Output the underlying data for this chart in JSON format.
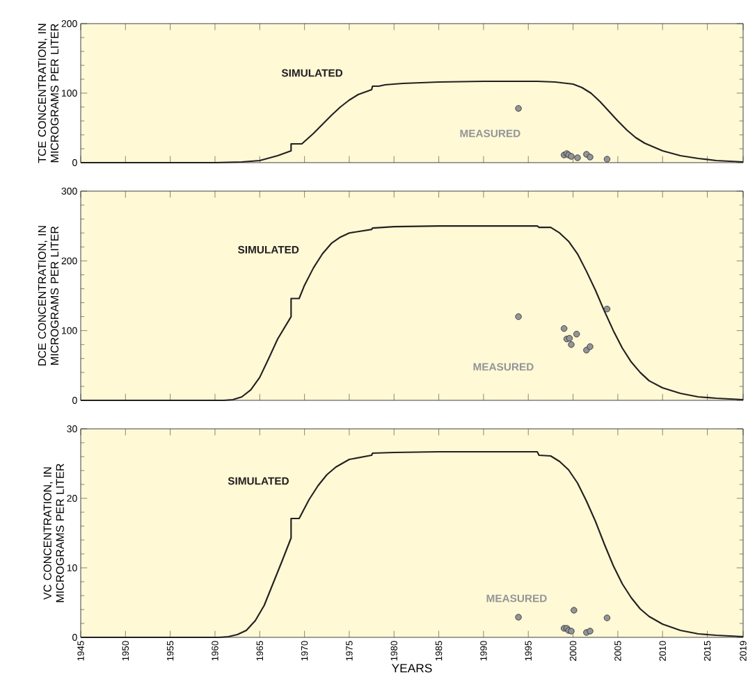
{
  "chart_data": [
    {
      "type": "line",
      "ylabel": "TCE CONCENTRATION, IN MICROGRAMS PER LITER",
      "xlim": [
        1945,
        2019
      ],
      "xticks": [
        1945,
        1950,
        1955,
        1960,
        1965,
        1970,
        1975,
        1980,
        1985,
        1990,
        1995,
        2000,
        2005,
        2010,
        2015,
        2019
      ],
      "ylim": [
        0,
        200
      ],
      "yticks": [
        0,
        100,
        200
      ],
      "tick_labels": "y",
      "series": [
        {
          "name": "SIMULATED",
          "type": "line",
          "color": "#231f20",
          "marker": "none",
          "x": [
            1945,
            1960,
            1963,
            1965,
            1967,
            1968.5,
            1968.5,
            1969.7,
            1971,
            1972,
            1973,
            1974,
            1975,
            1976,
            1977.5,
            1977.6,
            1978.3,
            1979,
            1981,
            1985,
            1990,
            1996,
            1998,
            2000,
            2001,
            2002,
            2003,
            2004,
            2005,
            2006,
            2007,
            2008,
            2010,
            2012,
            2014,
            2016,
            2019
          ],
          "values": [
            0,
            0,
            1,
            3,
            10,
            17,
            27,
            27,
            42,
            55,
            68,
            80,
            90,
            98,
            105,
            110,
            110,
            112,
            114,
            116,
            117,
            117,
            116,
            113,
            108,
            100,
            88,
            74,
            60,
            47,
            36,
            28,
            17,
            10,
            6,
            3,
            1
          ]
        },
        {
          "name": "MEASURED",
          "type": "scatter",
          "color": "#939598",
          "marker": "circle",
          "x": [
            1993.9,
            1999.0,
            1999.3,
            1999.5,
            1999.8,
            2000.5,
            2001.5,
            2001.9,
            2003.8
          ],
          "values": [
            78,
            11,
            13,
            11,
            9,
            7,
            12,
            8,
            5
          ]
        }
      ]
    },
    {
      "type": "line",
      "ylabel": "DCE CONCENTRATION, IN MICROGRAMS PER LITER",
      "xlim": [
        1945,
        2019
      ],
      "xticks": [
        1945,
        1950,
        1955,
        1960,
        1965,
        1970,
        1975,
        1980,
        1985,
        1990,
        1995,
        2000,
        2005,
        2010,
        2015,
        2019
      ],
      "ylim": [
        0,
        300
      ],
      "yticks": [
        0,
        100,
        200,
        300
      ],
      "tick_labels": "y",
      "series": [
        {
          "name": "SIMULATED",
          "type": "line",
          "color": "#231f20",
          "marker": "none",
          "x": [
            1945,
            1961,
            1962,
            1963,
            1964,
            1965,
            1966,
            1967,
            1968.5,
            1968.5,
            1969.4,
            1970,
            1971,
            1972,
            1973,
            1974,
            1975,
            1977.5,
            1977.6,
            1980,
            1985,
            1996,
            1996.2,
            1997.5,
            1998.5,
            1999.5,
            2000.5,
            2001.5,
            2002.5,
            2003.5,
            2004.5,
            2005.5,
            2006.5,
            2007.5,
            2008.5,
            2010,
            2012,
            2014,
            2016,
            2019
          ],
          "values": [
            0,
            0,
            1,
            5,
            15,
            33,
            60,
            88,
            120,
            146,
            146,
            165,
            190,
            210,
            225,
            234,
            240,
            245,
            247,
            249,
            250,
            250,
            248,
            248,
            240,
            228,
            210,
            185,
            158,
            128,
            100,
            75,
            55,
            40,
            28,
            18,
            10,
            5,
            3,
            1
          ]
        },
        {
          "name": "MEASURED",
          "type": "scatter",
          "color": "#939598",
          "marker": "circle",
          "x": [
            1993.9,
            2003.8,
            1999.0,
            1999.3,
            1999.6,
            1999.8,
            2000.4,
            2001.5,
            2001.9
          ],
          "values": [
            120,
            131,
            103,
            88,
            89,
            80,
            95,
            72,
            77
          ]
        }
      ]
    },
    {
      "type": "line",
      "xlabel": "YEARS",
      "ylabel": "VC CONCENTRATION, IN MICROGRAMS PER LITER",
      "xlim": [
        1945,
        2019
      ],
      "xticks": [
        1945,
        1950,
        1955,
        1960,
        1965,
        1970,
        1975,
        1980,
        1985,
        1990,
        1995,
        2000,
        2005,
        2010,
        2015,
        2019
      ],
      "ylim": [
        0,
        30
      ],
      "yticks": [
        0,
        10,
        20,
        30
      ],
      "series": [
        {
          "name": "SIMULATED",
          "type": "line",
          "color": "#231f20",
          "marker": "none",
          "x": [
            1945,
            1960.5,
            1961.5,
            1962.5,
            1963.5,
            1964.5,
            1965.5,
            1966.5,
            1967.5,
            1968.5,
            1968.5,
            1969.4,
            1970.5,
            1971.5,
            1972.5,
            1973.5,
            1975,
            1977.5,
            1977.6,
            1980,
            1985,
            1996,
            1996.2,
            1997.5,
            1998.5,
            1999.5,
            2000.5,
            2001.5,
            2002.5,
            2003.5,
            2004.5,
            2005.5,
            2006.5,
            2007.5,
            2008.5,
            2010,
            2012,
            2014,
            2016,
            2019
          ],
          "values": [
            0,
            0,
            0.1,
            0.4,
            1,
            2.4,
            4.6,
            7.8,
            11,
            14.3,
            17.1,
            17.1,
            19.8,
            21.8,
            23.4,
            24.5,
            25.6,
            26.2,
            26.5,
            26.6,
            26.7,
            26.7,
            26.2,
            26.1,
            25.3,
            24.1,
            22.2,
            19.6,
            16.7,
            13.4,
            10.3,
            7.7,
            5.7,
            4.1,
            3,
            1.9,
            1,
            0.5,
            0.3,
            0.1
          ]
        },
        {
          "name": "MEASURED",
          "type": "scatter",
          "color": "#939598",
          "marker": "circle",
          "x": [
            1993.9,
            2000.1,
            2003.8,
            1999.0,
            1999.3,
            1999.5,
            1999.8,
            2001.5,
            2001.9
          ],
          "values": [
            2.9,
            3.9,
            2.8,
            1.3,
            1.3,
            1.0,
            0.9,
            0.7,
            0.9
          ]
        }
      ]
    }
  ]
}
